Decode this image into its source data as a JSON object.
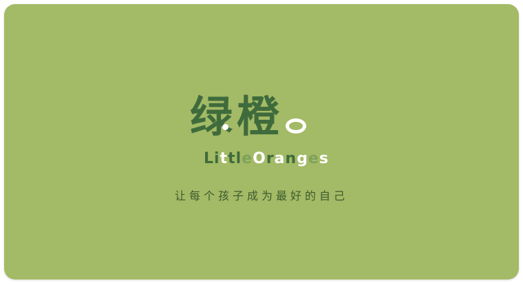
{
  "brand": {
    "name_cn_1": "绿",
    "name_cn_2": "橙",
    "name_en": "LittleOranges"
  },
  "tagline": "让每个孩子成为最好的自己",
  "colors": {
    "background": "#a3ba66",
    "logo_dark": "#3f6b3c",
    "logo_light": "#7fa25a",
    "logo_white": "#ffffff",
    "tagline": "#3d5a2e"
  }
}
